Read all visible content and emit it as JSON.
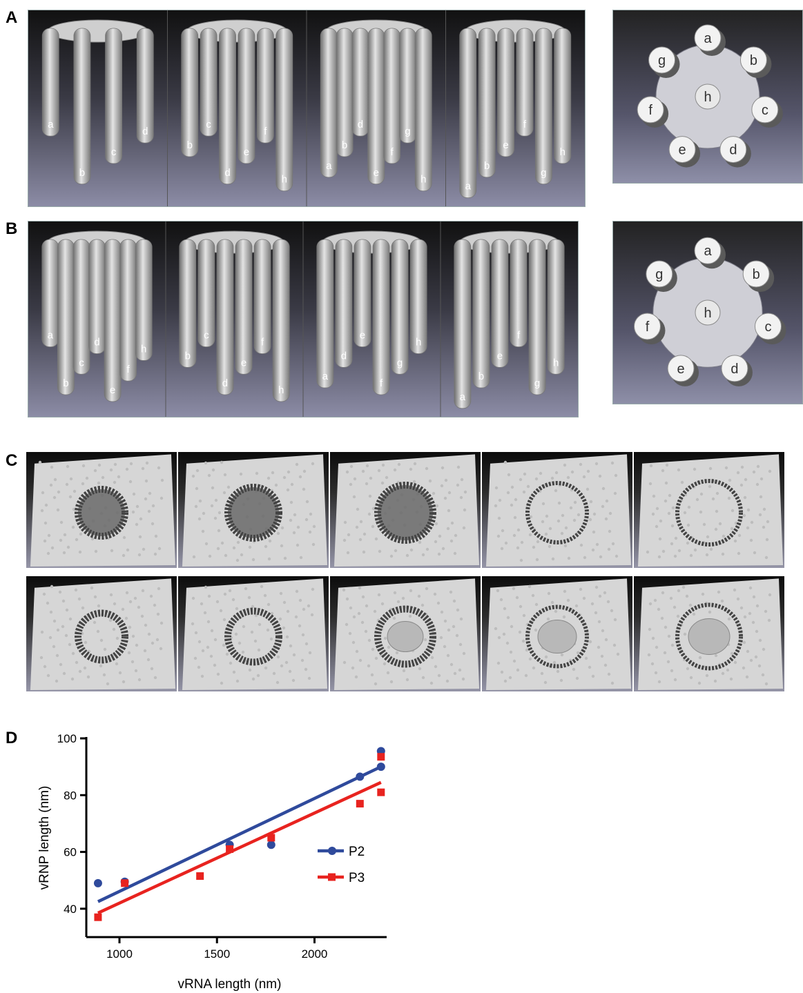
{
  "figure": {
    "panels": {
      "A": {
        "letter": "A",
        "side_views": [
          [
            "a",
            "b",
            "c",
            "d"
          ],
          [
            "b",
            "c",
            "d",
            "e",
            "f",
            "h"
          ],
          [
            "a",
            "b",
            "d",
            "e",
            "f",
            "g",
            "h"
          ],
          [
            "a",
            "b",
            "e",
            "f",
            "g",
            "h"
          ]
        ],
        "top_view": [
          "a",
          "b",
          "c",
          "d",
          "e",
          "f",
          "g",
          "h"
        ]
      },
      "B": {
        "letter": "B",
        "side_views": [
          [
            "a",
            "b",
            "c",
            "d",
            "e",
            "f",
            "h"
          ],
          [
            "b",
            "c",
            "d",
            "e",
            "f",
            "h"
          ],
          [
            "a",
            "d",
            "e",
            "f",
            "g",
            "h"
          ],
          [
            "a",
            "b",
            "e",
            "f",
            "g",
            "h"
          ]
        ],
        "top_view": [
          "a",
          "b",
          "c",
          "d",
          "e",
          "f",
          "g",
          "h"
        ]
      },
      "C": {
        "letter": "C"
      },
      "D": {
        "letter": "D"
      }
    }
  },
  "chart_data": {
    "type": "scatter",
    "xlabel": "vRNA length (nm)",
    "ylabel": "vRNP length (nm)",
    "xlim": [
      830,
      2370
    ],
    "ylim": [
      30,
      100
    ],
    "xticks": [
      1000,
      1500,
      2000
    ],
    "yticks": [
      40,
      60,
      80,
      100
    ],
    "legend_position": "center-right",
    "series": [
      {
        "name": "P2",
        "color": "#2f4a9c",
        "marker": "circle",
        "points": [
          [
            890,
            49
          ],
          [
            1027,
            49.5
          ],
          [
            1565,
            62.5
          ],
          [
            1778,
            62.5
          ],
          [
            2233,
            86.5
          ],
          [
            2341,
            95.5
          ],
          [
            2341,
            90
          ]
        ],
        "fit": [
          [
            890,
            42.5
          ],
          [
            2341,
            90
          ]
        ]
      },
      {
        "name": "P3",
        "color": "#e8231f",
        "marker": "square",
        "points": [
          [
            890,
            37
          ],
          [
            1027,
            49
          ],
          [
            1413,
            51.5
          ],
          [
            1565,
            61
          ],
          [
            1778,
            65
          ],
          [
            2233,
            77
          ],
          [
            2341,
            93.5
          ],
          [
            2341,
            81
          ]
        ],
        "fit": [
          [
            890,
            38.5
          ],
          [
            2341,
            84.5
          ]
        ]
      }
    ]
  }
}
